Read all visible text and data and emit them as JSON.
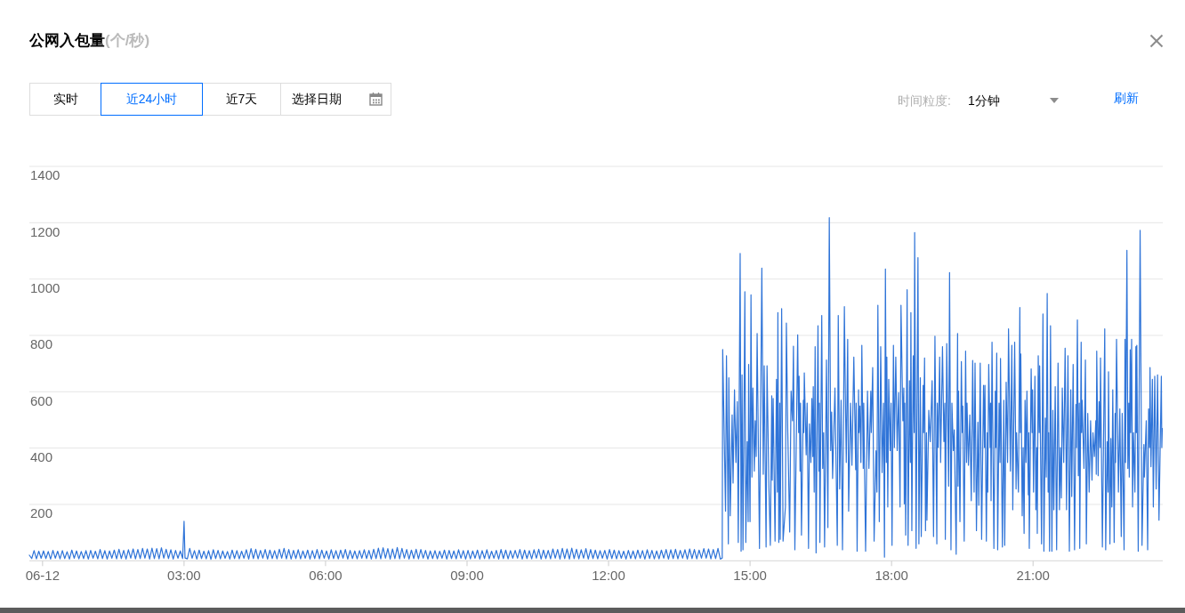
{
  "chart_data": {
    "type": "line",
    "title": "公网入包量",
    "annotations": [
      "(个/秒)",
      "实时",
      "近24小时",
      "近7天",
      "选择日期",
      "时间粒度:",
      "1分钟",
      "刷新"
    ],
    "xlim": [
      -0.28,
      23.75
    ],
    "xticks": [
      {
        "value": 0,
        "label": "06-12"
      },
      {
        "value": 3,
        "label": "03:00"
      },
      {
        "value": 6,
        "label": "06:00"
      },
      {
        "value": 9,
        "label": "09:00"
      },
      {
        "value": 12,
        "label": "12:00"
      },
      {
        "value": 15,
        "label": "15:00"
      },
      {
        "value": 18,
        "label": "18:00"
      },
      {
        "value": 21,
        "label": "21:00"
      }
    ],
    "ylim": [
      0,
      1400
    ],
    "yticks": [
      200,
      400,
      600,
      800,
      1000,
      1200,
      1400
    ],
    "grid": "y",
    "series": [
      {
        "color": "#2f74d8",
        "x": [
          -0.28,
          -0.23,
          -0.18,
          -0.13,
          -0.08,
          -0.03,
          0.02,
          0.07,
          0.12,
          0.17,
          0.22,
          0.27,
          0.32,
          0.37,
          0.42,
          0.47,
          0.52,
          0.57,
          0.62,
          0.67,
          0.72,
          0.77,
          0.82,
          0.87,
          0.92,
          0.97,
          1.02,
          1.07,
          1.12,
          1.17,
          1.22,
          1.27,
          1.32,
          1.37,
          1.42,
          1.47,
          1.52,
          1.57,
          1.62,
          1.67,
          1.72,
          1.77,
          1.82,
          1.87,
          1.92,
          1.97,
          2.02,
          2.07,
          2.12,
          2.17,
          2.22,
          2.27,
          2.32,
          2.37,
          2.42,
          2.47,
          2.52,
          2.57,
          2.62,
          2.67,
          2.72,
          2.77,
          2.82,
          2.87,
          2.92,
          2.97,
          3.0,
          3.02,
          3.07,
          3.12,
          3.17,
          3.22,
          3.27,
          3.32,
          3.37,
          3.42,
          3.47,
          3.52,
          3.57,
          3.62,
          3.67,
          3.72,
          3.77,
          3.82,
          3.87,
          3.92,
          3.97,
          4.02,
          4.07,
          4.12,
          4.17,
          4.22,
          4.27,
          4.32,
          4.37,
          4.42,
          4.47,
          4.52,
          4.57,
          4.62,
          4.67,
          4.72,
          4.77,
          4.82,
          4.87,
          4.92,
          4.97,
          5.02,
          5.07,
          5.12,
          5.17,
          5.22,
          5.27,
          5.32,
          5.37,
          5.42,
          5.47,
          5.52,
          5.57,
          5.62,
          5.67,
          5.72,
          5.77,
          5.82,
          5.87,
          5.92,
          5.97,
          6.02,
          6.07,
          6.12,
          6.17,
          6.22,
          6.27,
          6.32,
          6.37,
          6.42,
          6.47,
          6.52,
          6.57,
          6.62,
          6.67,
          6.72,
          6.77,
          6.82,
          6.87,
          6.92,
          6.97,
          7.02,
          7.07,
          7.12,
          7.17,
          7.22,
          7.27,
          7.32,
          7.37,
          7.42,
          7.47,
          7.52,
          7.57,
          7.62,
          7.67,
          7.72,
          7.77,
          7.82,
          7.87,
          7.92,
          7.97,
          8.02,
          8.07,
          8.12,
          8.17,
          8.22,
          8.27,
          8.32,
          8.37,
          8.42,
          8.47,
          8.52,
          8.57,
          8.62,
          8.67,
          8.72,
          8.77,
          8.82,
          8.87,
          8.92,
          8.97,
          9.02,
          9.07,
          9.12,
          9.17,
          9.22,
          9.27,
          9.32,
          9.37,
          9.42,
          9.47,
          9.52,
          9.57,
          9.62,
          9.67,
          9.72,
          9.77,
          9.82,
          9.87,
          9.92,
          9.97,
          10.02,
          10.07,
          10.12,
          10.17,
          10.22,
          10.27,
          10.32,
          10.37,
          10.42,
          10.47,
          10.52,
          10.57,
          10.62,
          10.67,
          10.72,
          10.77,
          10.82,
          10.87,
          10.92,
          10.97,
          11.02,
          11.07,
          11.12,
          11.17,
          11.22,
          11.27,
          11.32,
          11.37,
          11.42,
          11.47,
          11.52,
          11.57,
          11.62,
          11.67,
          11.72,
          11.77,
          11.82,
          11.87,
          11.92,
          11.97,
          12.02,
          12.07,
          12.12,
          12.17,
          12.22,
          12.27,
          12.32,
          12.37,
          12.42,
          12.47,
          12.52,
          12.57,
          12.62,
          12.67,
          12.72,
          12.77,
          12.82,
          12.87,
          12.92,
          12.97,
          13.02,
          13.07,
          13.12,
          13.17,
          13.22,
          13.27,
          13.32,
          13.37,
          13.42,
          13.47,
          13.52,
          13.57,
          13.62,
          13.67,
          13.72,
          13.77,
          13.82,
          13.87,
          13.92,
          13.97,
          14.02,
          14.07,
          14.12,
          14.17,
          14.22,
          14.27,
          14.32,
          14.37,
          14.41,
          14.42,
          14.48,
          14.5,
          14.54,
          14.55,
          14.58,
          14.62,
          14.64,
          14.67,
          14.7,
          14.73,
          14.75,
          14.79,
          14.81,
          14.83,
          14.85,
          14.89,
          14.91,
          14.94,
          14.96,
          14.97,
          15.0,
          15.02,
          15.04,
          15.06,
          15.09,
          15.11,
          15.13,
          15.15,
          15.2,
          15.25,
          15.28,
          15.3,
          15.34,
          15.36,
          15.4,
          15.43,
          15.46,
          15.47,
          15.49,
          15.53,
          15.56,
          15.58,
          15.59,
          15.61,
          15.63,
          15.64,
          15.67,
          15.7,
          15.75,
          15.77,
          15.8,
          15.84,
          15.87,
          15.9,
          15.92,
          15.95,
          16.01,
          16.03,
          16.04,
          16.06,
          16.07,
          16.09,
          16.13,
          16.14,
          16.15,
          16.19,
          16.21,
          16.24,
          16.26,
          16.29,
          16.31,
          16.33,
          16.34,
          16.36,
          16.38,
          16.4,
          16.44,
          16.46,
          16.47,
          16.48,
          16.52,
          16.54,
          16.56,
          16.58,
          16.62,
          16.65,
          16.68,
          16.71,
          16.73,
          16.75,
          16.8,
          16.85,
          16.87,
          16.9,
          16.93,
          16.96,
          17.0,
          17.02,
          17.04,
          17.07,
          17.09,
          17.13,
          17.16,
          17.2,
          17.24,
          17.25,
          17.27,
          17.3,
          17.31,
          17.33,
          17.35,
          17.37,
          17.4,
          17.41,
          17.45,
          17.49,
          17.52,
          17.56,
          17.57,
          17.6,
          17.63,
          17.67,
          17.69,
          17.71,
          17.74,
          17.77,
          17.8,
          17.83,
          17.85,
          17.87,
          17.89,
          17.9,
          17.92,
          17.94,
          17.97,
          17.99,
          18.01,
          18.04,
          18.06,
          18.09,
          18.12,
          18.15,
          18.18,
          18.2,
          18.24,
          18.26,
          18.27,
          18.28,
          18.3,
          18.33,
          18.35,
          18.38,
          18.4,
          18.41,
          18.43,
          18.46,
          18.48,
          18.49,
          18.52,
          18.56,
          18.58,
          18.61,
          18.63,
          18.67,
          18.68,
          18.7,
          18.72,
          18.74,
          18.75,
          18.79,
          18.82,
          18.86,
          18.89,
          18.92,
          18.96,
          18.97,
          18.99,
          19.02,
          19.04,
          19.08,
          19.11,
          19.13,
          19.14,
          19.17,
          19.21,
          19.23,
          19.26,
          19.28,
          19.31,
          19.33,
          19.37,
          19.4,
          19.41,
          19.42,
          19.45,
          19.48,
          19.5,
          19.51,
          19.54,
          19.57,
          19.59,
          19.6,
          19.63,
          19.66,
          19.69,
          19.72,
          19.75,
          19.77,
          19.8,
          19.83,
          19.85,
          19.88,
          19.91,
          19.95,
          19.97,
          19.98,
          20.01,
          20.03,
          20.04,
          20.06,
          20.09,
          20.1,
          20.11,
          20.13,
          20.17,
          20.2,
          20.21,
          20.23,
          20.25,
          20.28,
          20.3,
          20.31,
          20.35,
          20.38,
          20.4,
          20.43,
          20.46,
          20.48,
          20.52,
          20.55,
          20.57,
          20.61,
          20.64,
          20.65,
          20.69,
          20.72,
          20.73,
          20.74,
          20.77,
          20.79,
          20.81,
          20.83,
          20.85,
          20.87,
          20.9,
          20.91,
          20.92,
          20.96,
          20.98,
          20.99,
          21.01,
          21.04,
          21.06,
          21.08,
          21.09,
          21.11,
          21.13,
          21.14,
          21.18,
          21.21,
          21.23,
          21.26,
          21.28,
          21.3,
          21.32,
          21.33,
          21.35,
          21.37,
          21.4,
          21.42,
          21.44,
          21.47,
          21.5,
          21.53,
          21.56,
          21.58,
          21.6,
          21.62,
          21.65,
          21.68,
          21.71,
          21.74,
          21.77,
          21.8,
          21.82,
          21.85,
          21.88,
          21.91,
          21.92,
          21.94,
          21.96,
          21.98,
          21.99,
          22.02,
          22.03,
          22.04,
          22.08,
          22.11,
          22.13,
          22.16,
          22.19,
          22.22,
          22.25,
          22.27,
          22.3,
          22.33,
          22.34,
          22.35,
          22.38,
          22.4,
          22.42,
          22.43,
          22.47,
          22.52,
          22.54,
          22.57,
          22.59,
          22.6,
          22.63,
          22.65,
          22.67,
          22.69,
          22.72,
          22.74,
          22.75,
          22.77,
          22.81,
          22.84,
          22.87,
          22.89,
          22.93,
          22.95,
          22.96,
          22.97,
          22.99,
          23.01,
          23.03,
          23.04,
          23.06,
          23.07,
          23.09,
          23.11,
          23.13,
          23.16,
          23.18,
          23.19,
          23.2,
          23.23,
          23.27,
          23.31,
          23.35,
          23.36,
          23.4,
          23.43,
          23.45,
          23.47,
          23.48,
          23.5,
          23.53,
          23.55,
          23.58,
          23.61,
          23.64,
          23.67,
          23.72,
          23.73,
          23.74
        ],
        "values": [
          20,
          8,
          36,
          7,
          34,
          9,
          35,
          8,
          33,
          6,
          37,
          9,
          34,
          7,
          36,
          8,
          32,
          6,
          38,
          9,
          35,
          7,
          33,
          8,
          36,
          6,
          37,
          9,
          34,
          7,
          40,
          8,
          36,
          6,
          35,
          9,
          38,
          7,
          41,
          8,
          37,
          6,
          39,
          9,
          42,
          7,
          40,
          8,
          44,
          9,
          42,
          6,
          45,
          8,
          43,
          7,
          46,
          9,
          41,
          8,
          39,
          6,
          37,
          9,
          35,
          8,
          140,
          10,
          7,
          44,
          9,
          36,
          6,
          38,
          8,
          34,
          7,
          36,
          5,
          39,
          8,
          37,
          7,
          35,
          9,
          33,
          6,
          38,
          8,
          36,
          7,
          34,
          9,
          39,
          6,
          43,
          8,
          41,
          7,
          37,
          9,
          40,
          6,
          38,
          8,
          36,
          7,
          41,
          9,
          44,
          7,
          40,
          6,
          37,
          8,
          39,
          7,
          35,
          9,
          38,
          6,
          36,
          8,
          40,
          7,
          38,
          9,
          35,
          6,
          39,
          8,
          36,
          7,
          38,
          9,
          40,
          6,
          37,
          8,
          35,
          7,
          36,
          9,
          39,
          8,
          37,
          6,
          41,
          8,
          45,
          7,
          46,
          9,
          43,
          6,
          42,
          8,
          47,
          7,
          44,
          9,
          40,
          6,
          38,
          8,
          41,
          7,
          40,
          9,
          37,
          6,
          35,
          8,
          36,
          7,
          34,
          9,
          38,
          6,
          37,
          8,
          35,
          7,
          39,
          9,
          36,
          6,
          37,
          7,
          35,
          9,
          38,
          6,
          36,
          8,
          39,
          7,
          34,
          9,
          37,
          6,
          40,
          8,
          38,
          7,
          36,
          9,
          37,
          9,
          40,
          6,
          38,
          8,
          36,
          7,
          39,
          9,
          41,
          6,
          38,
          8,
          37,
          7,
          42,
          9,
          40,
          6,
          44,
          8,
          42,
          6,
          45,
          8,
          41,
          7,
          39,
          9,
          43,
          6,
          40,
          8,
          38,
          7,
          36,
          9,
          37,
          6,
          40,
          8,
          38,
          7,
          36,
          9,
          34,
          6,
          37,
          8,
          35,
          7,
          38,
          9,
          36,
          6,
          39,
          8,
          37,
          7,
          35,
          7,
          38,
          9,
          40,
          6,
          39,
          8,
          41,
          7,
          37,
          9,
          39,
          6,
          42,
          8,
          40,
          7,
          38,
          9,
          43,
          9,
          42,
          7,
          40,
          8,
          44,
          6,
          10,
          750,
          176,
          728,
          60,
          650,
          160,
          518,
          276,
          607,
          349,
          565,
          65,
          1091,
          34,
          660,
          39,
          955,
          65,
          423,
          139,
          697,
          139,
          944,
          297,
          613,
          318,
          497,
          370,
          807,
          44,
          1039,
          307,
          692,
          49,
          692,
          260,
          55,
          586,
          286,
          576,
          70,
          644,
          244,
          881,
          65,
          560,
          76,
          895,
          70,
          191,
          844,
          455,
          102,
          602,
          497,
          762,
          39,
          802,
          455,
          655,
          318,
          560,
          91,
          570,
          455,
          667,
          376,
          560,
          44,
          486,
          349,
          576,
          370,
          618,
          244,
          760,
          28,
          834,
          318,
          560,
          65,
          871,
          328,
          455,
          49,
          713,
          118,
          1218,
          391,
          528,
          292,
          613,
          55,
          871,
          255,
          570,
          39,
          902,
          592,
          349,
          786,
          176,
          560,
          339,
          723,
          323,
          560,
          34,
          607,
          455,
          549,
          349,
          765,
          328,
          560,
          34,
          602,
          328,
          602,
          455,
          686,
          70,
          391,
          244,
          907,
          139,
          760,
          313,
          560,
          13,
          1036,
          349,
          723,
          191,
          644,
          391,
          560,
          55,
          765,
          402,
          723,
          391,
          597,
          191,
          907,
          497,
          613,
          202,
          560,
          91,
          962,
          55,
          639,
          349,
          881,
          107,
          728,
          455,
          1165,
          44,
          1076,
          60,
          650,
          86,
          623,
          455,
          720,
          107,
          455,
          144,
          534,
          423,
          639,
          86,
          797,
          60,
          560,
          402,
          723,
          349,
          760,
          423,
          560,
          76,
          771,
          265,
          1023,
          39,
          560,
          391,
          465,
          23,
          807,
          265,
          602,
          139,
          707,
          455,
          549,
          70,
          744,
          349,
          560,
          339,
          518,
          213,
          711,
          244,
          702,
          107,
          492,
          197,
          702,
          76,
          623,
          402,
          623,
          70,
          455,
          244,
          697,
          402,
          560,
          213,
          776,
          44,
          602,
          402,
          737,
          39,
          560,
          349,
          718,
          49,
          570,
          55,
          634,
          349,
          823,
          318,
          765,
          181,
          776,
          255,
          455,
          244,
          899,
          455,
          734,
          160,
          402,
          97,
          570,
          349,
          602,
          234,
          455,
          44,
          681,
          455,
          607,
          244,
          655,
          181,
          402,
          97,
          728,
          455,
          692,
          60,
          876,
          34,
          507,
          297,
          949,
          244,
          455,
          34,
          834,
          34,
          534,
          181,
          618,
          39,
          702,
          181,
          402,
          223,
          613,
          349,
          755,
          181,
          728,
          34,
          607,
          228,
          697,
          39,
          555,
          402,
          855,
          302,
          560,
          44,
          776,
          455,
          570,
          328,
          713,
          60,
          523,
          244,
          497,
          286,
          455,
          370,
          497,
          307,
          744,
          302,
          565,
          402,
          720,
          49,
          823,
          39,
          423,
          244,
          671,
          60,
          434,
          191,
          607,
          65,
          523,
          349,
          786,
          244,
          539,
          86,
          523,
          39,
          786,
          349,
          592,
          1102,
          328,
          560,
          297,
          749,
          455,
          786,
          191,
          455,
          244,
          760,
          455,
          765,
          34,
          1173,
          55,
          413,
          297,
          497,
          39,
          539,
          402,
          686,
          334,
          644,
          191,
          655,
          255,
          660,
          144,
          655,
          402,
          470
        ]
      }
    ]
  }
}
